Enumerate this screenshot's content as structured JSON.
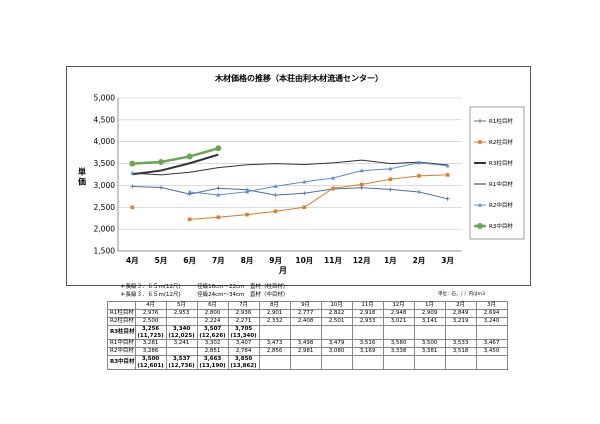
{
  "chart_data": {
    "type": "line",
    "title": "木材価格の推移（本荘由利木材流通センター）",
    "ylabel": "単価",
    "xlabel": "月",
    "categories": [
      "4月",
      "5月",
      "6月",
      "7月",
      "8月",
      "9月",
      "10月",
      "11月",
      "12月",
      "1月",
      "2月",
      "3月"
    ],
    "ylim": [
      1500,
      5000
    ],
    "yticks": [
      "1,500",
      "2,000",
      "2,500",
      "3,000",
      "3,500",
      "4,000",
      "4,500",
      "5,000"
    ],
    "grid": true,
    "legend_position": "right",
    "series": [
      {
        "name": "R1柱目材",
        "color": "#4a6fa5",
        "width": 1,
        "marker": "plus",
        "values": [
          2976,
          2953,
          2800,
          2936,
          2901,
          2777,
          2822,
          2918,
          2948,
          2909,
          2849,
          2694
        ]
      },
      {
        "name": "R2柱目材",
        "color": "#e07b28",
        "width": 1,
        "marker": "square",
        "values": [
          2500,
          null,
          2224,
          2271,
          2332,
          2408,
          2501,
          2933,
          3021,
          3141,
          3219,
          3240
        ]
      },
      {
        "name": "R3柱目材",
        "color": "#333333",
        "width": 2,
        "marker": "none",
        "values": [
          3256,
          3340,
          3507,
          3705,
          null,
          null,
          null,
          null,
          null,
          null,
          null,
          null
        ]
      },
      {
        "name": "R1中目材",
        "color": "#333333",
        "width": 1,
        "marker": "none",
        "values": [
          3281,
          3241,
          3302,
          3407,
          3473,
          3498,
          3479,
          3516,
          3580,
          3500,
          3533,
          3467
        ]
      },
      {
        "name": "R2中目材",
        "color": "#5b8fd0",
        "width": 1,
        "marker": "triangle",
        "values": [
          3286,
          null,
          2851,
          2784,
          2856,
          2981,
          3080,
          3169,
          3338,
          3381,
          3518,
          3450
        ]
      },
      {
        "name": "R3中目材",
        "color": "#6aa84f",
        "width": 2.5,
        "marker": "circle",
        "values": [
          3500,
          3537,
          3663,
          3850,
          null,
          null,
          null,
          null,
          null,
          null,
          null,
          null
        ]
      }
    ]
  },
  "notes": [
    "＊長級３．６５m(12尺)　　　径級16cm～22cm　直材（柱目材）",
    "＊長級３．６５m(12尺)　　　径級24cm～34cm　直材（中目材）"
  ],
  "unit_note": "単位：石，（ ）内はm3",
  "table": {
    "header": [
      "",
      "4月",
      "5月",
      "6月",
      "7月",
      "8月",
      "9月",
      "10月",
      "11月",
      "12月",
      "1月",
      "2月",
      "3月"
    ],
    "rows": [
      {
        "label": "R1柱目材",
        "cells": [
          "2,976",
          "2,953",
          "2,800",
          "2,936",
          "2,901",
          "2,777",
          "2,822",
          "2,918",
          "2,948",
          "2,909",
          "2,849",
          "2,694"
        ],
        "bold": false
      },
      {
        "label": "R2柱目材",
        "cells": [
          "2,500",
          "",
          "2,224",
          "2,271",
          "2,332",
          "2,408",
          "2,501",
          "2,933",
          "3,021",
          "3,141",
          "3,219",
          "3,240"
        ],
        "bold": false
      },
      {
        "label": "R3柱目材",
        "cells": [
          "3,256\n(11,725)",
          "3,340\n(12,025)",
          "3,507\n(12,626)",
          "3,705\n(13,340)",
          "",
          "",
          "",
          "",
          "",
          "",
          "",
          ""
        ],
        "bold": true
      },
      {
        "label": "R1中目材",
        "cells": [
          "3,281",
          "3,241",
          "3,302",
          "3,407",
          "3,473",
          "3,498",
          "3,479",
          "3,516",
          "3,580",
          "3,500",
          "3,533",
          "3,467"
        ],
        "bold": false
      },
      {
        "label": "R2中目材",
        "cells": [
          "3,286",
          "",
          "2,851",
          "2,784",
          "2,856",
          "2,981",
          "3,080",
          "3,169",
          "3,338",
          "3,381",
          "3,518",
          "3,450"
        ],
        "bold": false
      },
      {
        "label": "R3中目材",
        "cells": [
          "3,500\n(12,601)",
          "3,537\n(12,736)",
          "3,663\n(13,190)",
          "3,850\n(13,862)",
          "",
          "",
          "",
          "",
          "",
          "",
          "",
          ""
        ],
        "bold": true
      }
    ]
  }
}
